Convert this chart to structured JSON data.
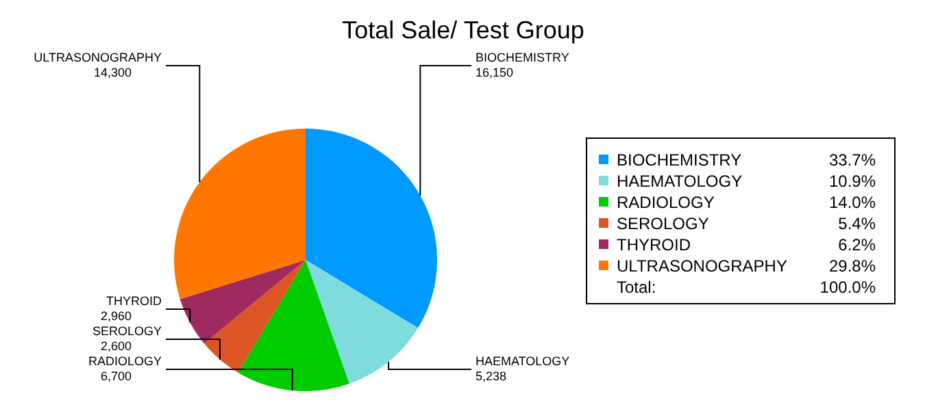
{
  "chart_data": {
    "type": "pie",
    "title": "Total Sale/ Test Group",
    "categories": [
      "BIOCHEMISTRY",
      "HAEMATOLOGY",
      "RADIOLOGY",
      "SEROLOGY",
      "THYROID",
      "ULTRASONOGRAPHY"
    ],
    "values": [
      16150,
      5238,
      6700,
      2600,
      2960,
      14300
    ],
    "value_labels": [
      "16,150",
      "5,238",
      "6,700",
      "2,600",
      "2,960",
      "14,300"
    ],
    "colors": [
      "#0099ff",
      "#7fdcdc",
      "#00cc00",
      "#dd5522",
      "#a0295f",
      "#ff7700"
    ],
    "annotations": [
      "33.7%",
      "10.9%",
      "14.0%",
      "5.4%",
      "6.2%",
      "29.8%",
      "Total:",
      "100.0%"
    ],
    "legend": "right"
  }
}
